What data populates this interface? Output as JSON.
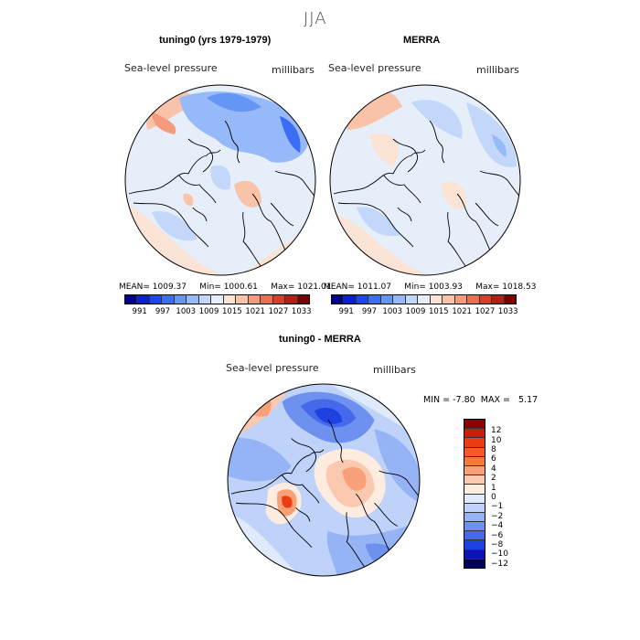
{
  "season": "JJA",
  "panels": {
    "model": {
      "title": "tuning0 (yrs 1979-1979)",
      "variable": "Sea-level pressure",
      "units": "millibars",
      "stats": {
        "mean_label": "MEAN=",
        "mean": "1009.37",
        "min_label": "Min=",
        "min": "1000.61",
        "max_label": "Max=",
        "max": "1021.01"
      }
    },
    "obs": {
      "title": "MERRA",
      "variable": "Sea-level pressure",
      "units": "millibars",
      "stats": {
        "mean_label": "MEAN=",
        "mean": "1011.07",
        "min_label": "Min=",
        "min": "1003.93",
        "max_label": "Max=",
        "max": "1018.53"
      }
    },
    "diff": {
      "title": "tuning0 - MERRA",
      "variable": "Sea-level pressure",
      "units": "millibars",
      "stats": {
        "min_label": "MIN =",
        "min": "-7.80",
        "max_label": "MAX =",
        "max": "5.17"
      }
    }
  },
  "colorbar_abs": {
    "ticks": [
      "991",
      "997",
      "1003",
      "1009",
      "1015",
      "1021",
      "1027",
      "1033"
    ],
    "colors": [
      "#00008c",
      "#0a1fd2",
      "#1e46f0",
      "#3c6ef5",
      "#6496f5",
      "#96b9fa",
      "#c3d7fa",
      "#e6eefa",
      "#fbe3d6",
      "#f9c3aa",
      "#f59b7d",
      "#ef6e50",
      "#dc3c28",
      "#b41e14",
      "#7d0000"
    ]
  },
  "colorbar_diff": {
    "ticks": [
      "12",
      "10",
      "8",
      "6",
      "4",
      "2",
      "1",
      "0",
      "−1",
      "−2",
      "−4",
      "−6",
      "−8",
      "−10",
      "−12"
    ],
    "colors": [
      "#8c0000",
      "#c81e0a",
      "#eb3c14",
      "#f55a28",
      "#f5783c",
      "#f8a078",
      "#fbc8b0",
      "#fdecdf",
      "#dfeafa",
      "#bed2fa",
      "#96b4f5",
      "#6e91f0",
      "#4669eb",
      "#1e41e1",
      "#0a14b4",
      "#00005a"
    ]
  }
}
